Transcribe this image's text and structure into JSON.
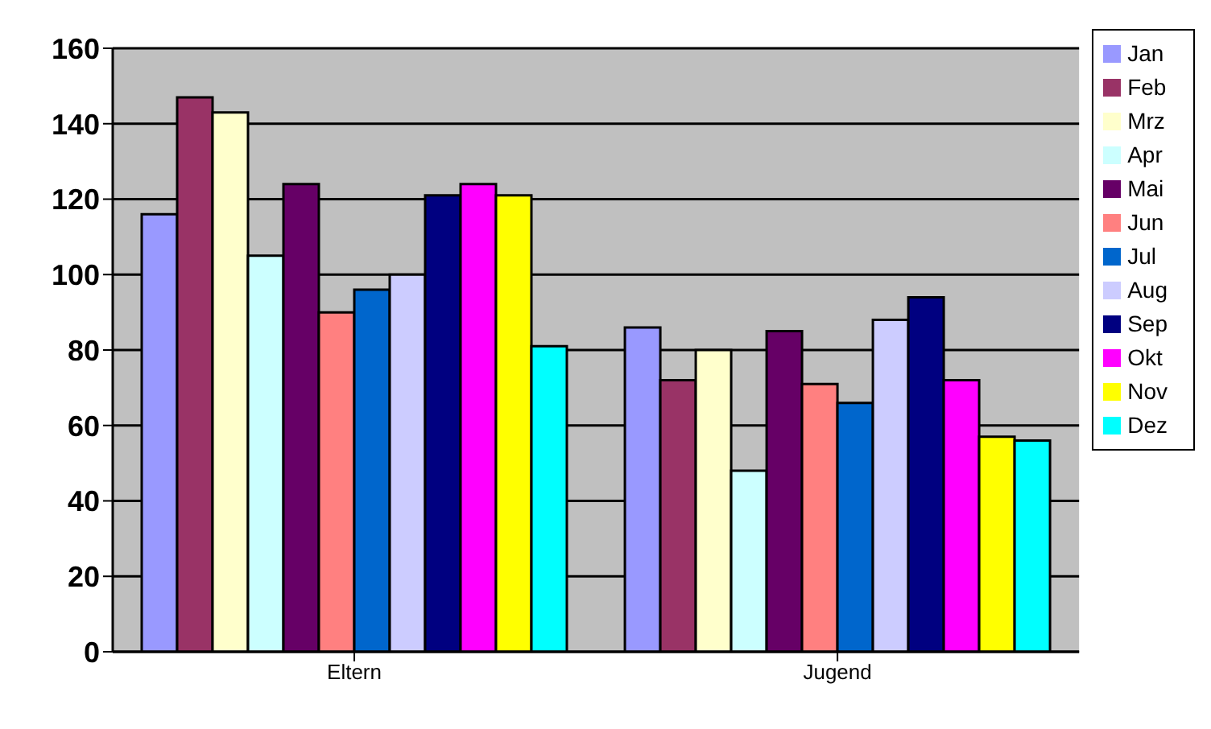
{
  "chart_data": {
    "type": "bar",
    "categories": [
      "Eltern",
      "Jugend"
    ],
    "series": [
      {
        "name": "Jan",
        "color": "#9999ff",
        "values": [
          116,
          86
        ]
      },
      {
        "name": "Feb",
        "color": "#993366",
        "values": [
          147,
          72
        ]
      },
      {
        "name": "Mrz",
        "color": "#ffffcc",
        "values": [
          143,
          80
        ]
      },
      {
        "name": "Apr",
        "color": "#ccffff",
        "values": [
          105,
          48
        ]
      },
      {
        "name": "Mai",
        "color": "#660066",
        "values": [
          124,
          85
        ]
      },
      {
        "name": "Jun",
        "color": "#ff8080",
        "values": [
          90,
          71
        ]
      },
      {
        "name": "Jul",
        "color": "#0066cc",
        "values": [
          96,
          66
        ]
      },
      {
        "name": "Aug",
        "color": "#ccccff",
        "values": [
          100,
          88
        ]
      },
      {
        "name": "Sep",
        "color": "#000080",
        "values": [
          121,
          94
        ]
      },
      {
        "name": "Okt",
        "color": "#ff00ff",
        "values": [
          124,
          72
        ]
      },
      {
        "name": "Nov",
        "color": "#ffff00",
        "values": [
          121,
          57
        ]
      },
      {
        "name": "Dez",
        "color": "#00ffff",
        "values": [
          81,
          56
        ]
      }
    ],
    "ylim": [
      0,
      160
    ],
    "yticks": [
      0,
      20,
      40,
      60,
      80,
      100,
      120,
      140,
      160
    ],
    "grid": "y",
    "legend": "right"
  }
}
